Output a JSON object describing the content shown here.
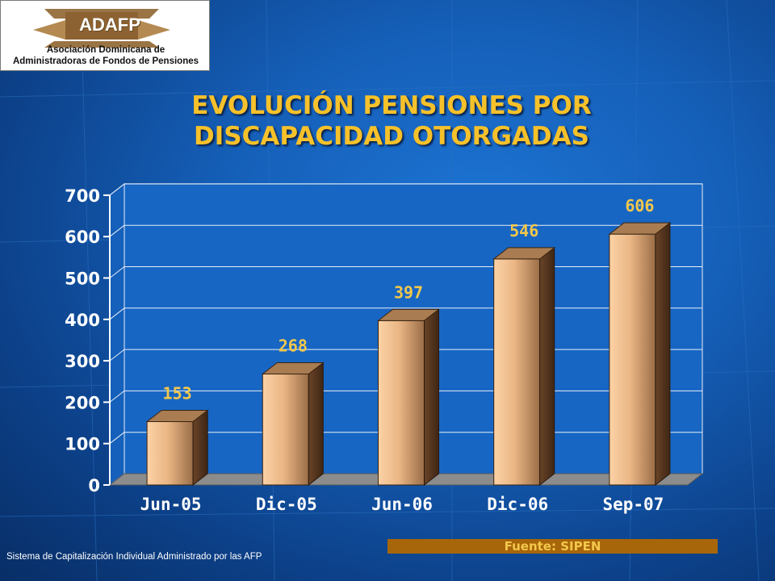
{
  "logo": {
    "name": "ADAFP",
    "line1": "Asociación Dominicana de",
    "line2": "Administradoras de Fondos de Pensiones"
  },
  "title": "EVOLUCIÓN PENSIONES POR DISCAPACIDAD OTORGADAS",
  "source": "Fuente: SIPEN",
  "footer": "Sistema de Capitalización Individual Administrado por las AFP",
  "colors": {
    "title": "#f6c12a",
    "bar_light": "#f7c99a",
    "bar_dark": "#7a5232",
    "source_bar": "#a8660a",
    "label": "#f3c84b"
  },
  "chart_data": {
    "type": "bar",
    "categories": [
      "Jun-05",
      "Dic-05",
      "Jun-06",
      "Dic-06",
      "Sep-07"
    ],
    "values": [
      153,
      268,
      397,
      546,
      606
    ],
    "data_labels": [
      "153",
      "268",
      "397",
      "546",
      "606"
    ],
    "yticks": [
      "0",
      "100",
      "200",
      "300",
      "400",
      "500",
      "600",
      "700"
    ],
    "ylim": [
      0,
      700
    ],
    "grid": true,
    "style": "3d"
  }
}
